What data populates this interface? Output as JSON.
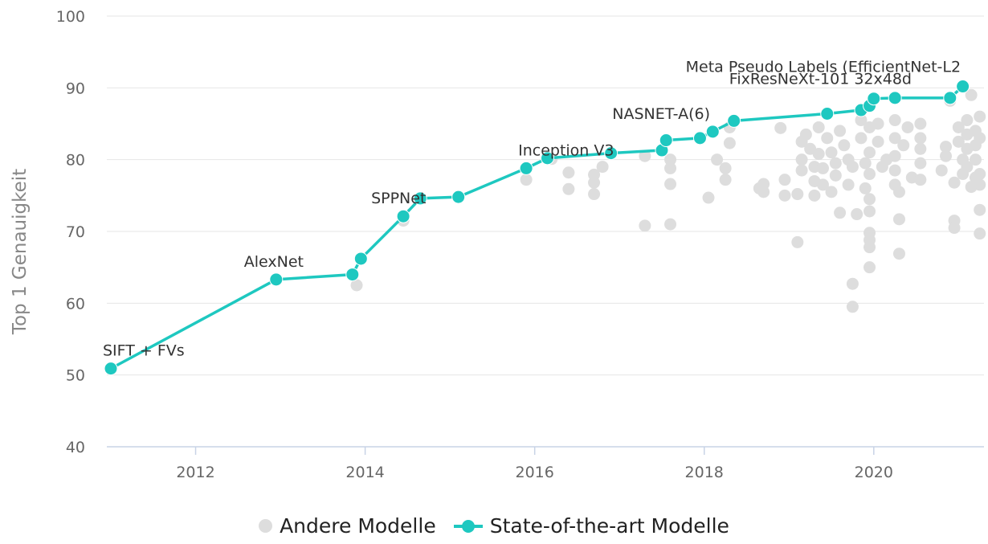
{
  "chart_data": {
    "type": "scatter",
    "title": "",
    "xlabel": "",
    "ylabel": "Top 1 Genauigkeit",
    "xlim": [
      2011.0,
      2021.3
    ],
    "ylim": [
      40,
      100
    ],
    "x_ticks": [
      2012,
      2014,
      2016,
      2018,
      2020
    ],
    "y_ticks": [
      40,
      50,
      60,
      70,
      80,
      90,
      100
    ],
    "grid": "horizontal",
    "legend_position": "bottom",
    "colors": {
      "sota": "#1ec8c0",
      "others": "#dddddd",
      "grid": "#e6e6e6",
      "axis": "#c8d3e6"
    },
    "series": [
      {
        "name": "Andere Modelle",
        "kind": "scatter",
        "points": [
          [
            2013.9,
            62.5
          ],
          [
            2014.45,
            71.5
          ],
          [
            2015.9,
            77.2
          ],
          [
            2016.2,
            80.1
          ],
          [
            2016.4,
            78.2
          ],
          [
            2016.4,
            75.9
          ],
          [
            2016.7,
            77.9
          ],
          [
            2016.7,
            76.8
          ],
          [
            2016.7,
            75.2
          ],
          [
            2016.8,
            79.0
          ],
          [
            2017.3,
            80.5
          ],
          [
            2017.3,
            70.8
          ],
          [
            2017.6,
            80.0
          ],
          [
            2017.6,
            78.8
          ],
          [
            2017.6,
            76.6
          ],
          [
            2017.6,
            71.0
          ],
          [
            2018.05,
            74.7
          ],
          [
            2018.15,
            80.0
          ],
          [
            2018.25,
            78.8
          ],
          [
            2018.25,
            77.2
          ],
          [
            2018.3,
            84.5
          ],
          [
            2018.3,
            82.3
          ],
          [
            2018.65,
            76.0
          ],
          [
            2018.7,
            76.6
          ],
          [
            2018.7,
            75.5
          ],
          [
            2018.9,
            84.4
          ],
          [
            2018.95,
            77.2
          ],
          [
            2018.95,
            75.0
          ],
          [
            2019.1,
            68.5
          ],
          [
            2019.1,
            75.2
          ],
          [
            2019.15,
            78.5
          ],
          [
            2019.15,
            80.0
          ],
          [
            2019.15,
            82.5
          ],
          [
            2019.2,
            83.5
          ],
          [
            2019.25,
            81.5
          ],
          [
            2019.3,
            79.0
          ],
          [
            2019.3,
            77.0
          ],
          [
            2019.3,
            75.0
          ],
          [
            2019.35,
            84.5
          ],
          [
            2019.35,
            80.8
          ],
          [
            2019.4,
            78.8
          ],
          [
            2019.4,
            76.5
          ],
          [
            2019.45,
            83.0
          ],
          [
            2019.5,
            81.0
          ],
          [
            2019.5,
            75.5
          ],
          [
            2019.55,
            79.5
          ],
          [
            2019.55,
            77.8
          ],
          [
            2019.6,
            84.0
          ],
          [
            2019.6,
            72.6
          ],
          [
            2019.65,
            82.0
          ],
          [
            2019.7,
            76.5
          ],
          [
            2019.7,
            80.0
          ],
          [
            2019.75,
            79.0
          ],
          [
            2019.75,
            62.7
          ],
          [
            2019.75,
            59.5
          ],
          [
            2019.8,
            72.4
          ],
          [
            2019.85,
            85.5
          ],
          [
            2019.85,
            83.0
          ],
          [
            2019.9,
            79.5
          ],
          [
            2019.9,
            76.0
          ],
          [
            2019.95,
            84.5
          ],
          [
            2019.95,
            81.0
          ],
          [
            2019.95,
            78.0
          ],
          [
            2019.95,
            74.5
          ],
          [
            2019.95,
            72.8
          ],
          [
            2019.95,
            69.8
          ],
          [
            2019.95,
            68.8
          ],
          [
            2019.95,
            67.8
          ],
          [
            2019.95,
            65.0
          ],
          [
            2020.05,
            85.0
          ],
          [
            2020.05,
            82.5
          ],
          [
            2020.1,
            79.0
          ],
          [
            2020.15,
            80.0
          ],
          [
            2020.25,
            85.5
          ],
          [
            2020.25,
            83.0
          ],
          [
            2020.25,
            80.5
          ],
          [
            2020.25,
            78.5
          ],
          [
            2020.25,
            76.5
          ],
          [
            2020.3,
            75.5
          ],
          [
            2020.3,
            71.7
          ],
          [
            2020.3,
            66.9
          ],
          [
            2020.35,
            82.0
          ],
          [
            2020.4,
            84.5
          ],
          [
            2020.45,
            77.5
          ],
          [
            2020.55,
            85.0
          ],
          [
            2020.55,
            83.0
          ],
          [
            2020.55,
            81.5
          ],
          [
            2020.55,
            79.5
          ],
          [
            2020.55,
            77.2
          ],
          [
            2020.8,
            78.5
          ],
          [
            2020.85,
            80.5
          ],
          [
            2020.85,
            81.8
          ],
          [
            2020.9,
            88.2
          ],
          [
            2020.95,
            76.8
          ],
          [
            2020.95,
            71.5
          ],
          [
            2020.95,
            70.5
          ],
          [
            2021.0,
            82.5
          ],
          [
            2021.0,
            84.5
          ],
          [
            2021.05,
            78.0
          ],
          [
            2021.05,
            80.0
          ],
          [
            2021.1,
            83.5
          ],
          [
            2021.1,
            85.5
          ],
          [
            2021.1,
            81.5
          ],
          [
            2021.1,
            79.0
          ],
          [
            2021.15,
            76.2
          ],
          [
            2021.15,
            89.0
          ],
          [
            2021.2,
            84.0
          ],
          [
            2021.2,
            82.0
          ],
          [
            2021.2,
            80.0
          ],
          [
            2021.2,
            77.5
          ],
          [
            2021.25,
            86.0
          ],
          [
            2021.25,
            83.0
          ],
          [
            2021.25,
            78.0
          ],
          [
            2021.25,
            76.5
          ],
          [
            2021.25,
            73.0
          ],
          [
            2021.25,
            69.7
          ]
        ]
      },
      {
        "name": "State-of-the-art Modelle",
        "kind": "line",
        "points": [
          [
            2011.0,
            50.9
          ],
          [
            2012.95,
            63.3
          ],
          [
            2013.85,
            64.0
          ],
          [
            2013.95,
            66.2
          ],
          [
            2014.45,
            72.1
          ],
          [
            2014.65,
            74.6
          ],
          [
            2015.1,
            74.8
          ],
          [
            2015.9,
            78.8
          ],
          [
            2016.15,
            80.2
          ],
          [
            2016.9,
            80.9
          ],
          [
            2017.5,
            81.3
          ],
          [
            2017.55,
            82.7
          ],
          [
            2017.95,
            83.0
          ],
          [
            2018.1,
            83.9
          ],
          [
            2018.35,
            85.4
          ],
          [
            2019.45,
            86.4
          ],
          [
            2019.85,
            86.9
          ],
          [
            2019.95,
            87.5
          ],
          [
            2020.0,
            88.5
          ],
          [
            2020.25,
            88.6
          ],
          [
            2020.9,
            88.6
          ],
          [
            2021.05,
            90.2
          ]
        ]
      }
    ],
    "annotations": [
      {
        "text": "SIFT + FVs",
        "x": 2011.0,
        "y": 50.9
      },
      {
        "text": "AlexNet",
        "x": 2012.95,
        "y": 63.3
      },
      {
        "text": "SPPNet",
        "x": 2014.45,
        "y": 72.1
      },
      {
        "text": "Inception V3",
        "x": 2015.9,
        "y": 78.8
      },
      {
        "text": "NASNET-A(6)",
        "x": 2018.1,
        "y": 83.9
      },
      {
        "text": "FixResNeXt-101 32x48d",
        "x": 2020.0,
        "y": 88.5
      },
      {
        "text": "Meta Pseudo Labels (EfficientNet-L2",
        "x": 2021.05,
        "y": 90.2
      }
    ]
  },
  "legend": {
    "others_label": "Andere Modelle",
    "sota_label": "State-of-the-art Modelle"
  }
}
